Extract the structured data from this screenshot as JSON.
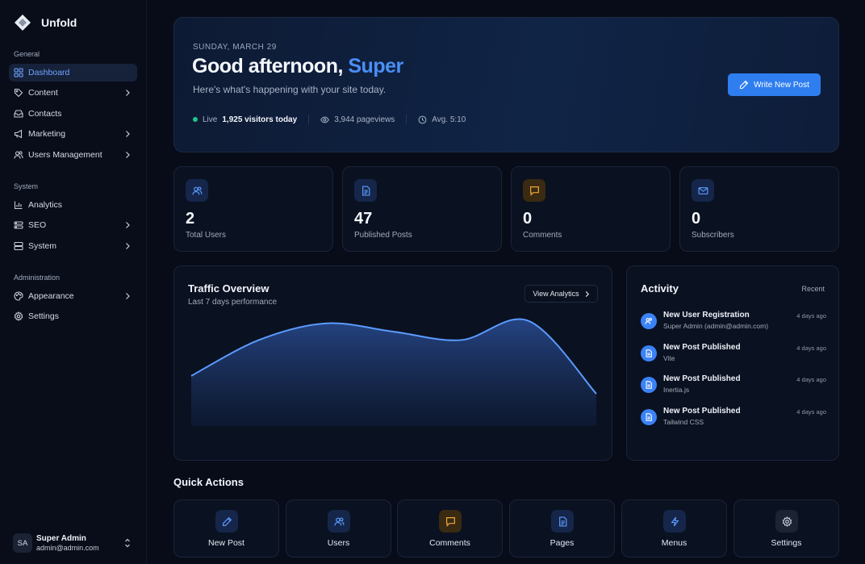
{
  "app": {
    "name": "Unfold"
  },
  "sidebar": {
    "sections": [
      {
        "title": "General",
        "items": [
          {
            "label": "Dashboard",
            "icon": "dashboard-icon",
            "active": true
          },
          {
            "label": "Content",
            "icon": "tag-icon",
            "has_children": true
          },
          {
            "label": "Contacts",
            "icon": "inbox-icon"
          },
          {
            "label": "Marketing",
            "icon": "megaphone-icon",
            "has_children": true
          },
          {
            "label": "Users Management",
            "icon": "users-icon",
            "has_children": true
          }
        ]
      },
      {
        "title": "System",
        "items": [
          {
            "label": "Analytics",
            "icon": "bar-chart-icon"
          },
          {
            "label": "SEO",
            "icon": "seo-icon",
            "has_children": true
          },
          {
            "label": "System",
            "icon": "server-icon",
            "has_children": true
          }
        ]
      },
      {
        "title": "Administration",
        "items": [
          {
            "label": "Appearance",
            "icon": "palette-icon",
            "has_children": true
          },
          {
            "label": "Settings",
            "icon": "gear-icon"
          }
        ]
      }
    ],
    "user": {
      "initials": "SA",
      "name": "Super Admin",
      "email": "admin@admin.com"
    }
  },
  "hero": {
    "date": "SUNDAY, MARCH 29",
    "greeting": "Good afternoon,",
    "name": "Super",
    "subtitle": "Here's what's happening with your site today.",
    "write_button": "Write New Post",
    "live_label": "Live",
    "visitors": "1,925 visitors today",
    "pageviews": "3,944 pageviews",
    "avg": "Avg. 5:10"
  },
  "metrics": [
    {
      "value": "2",
      "label": "Total Users",
      "icon": "users-icon"
    },
    {
      "value": "47",
      "label": "Published Posts",
      "icon": "document-icon"
    },
    {
      "value": "0",
      "label": "Comments",
      "icon": "comment-icon"
    },
    {
      "value": "0",
      "label": "Subscribers",
      "icon": "mail-icon"
    }
  ],
  "traffic": {
    "title": "Traffic Overview",
    "subtitle": "Last 7 days performance",
    "view_button": "View Analytics"
  },
  "chart_data": {
    "type": "area",
    "title": "Traffic Overview",
    "values": [
      42,
      72,
      86,
      79,
      72,
      88,
      27
    ],
    "ylim": [
      0,
      100
    ],
    "grid": false,
    "color": "#4b8ef5"
  },
  "activity": {
    "title": "Activity",
    "recent_label": "Recent",
    "items": [
      {
        "title": "New User Registration",
        "sub": "Super Admin (admin@admin.com)",
        "time": "4 days ago",
        "icon": "user-icon"
      },
      {
        "title": "New Post Published",
        "sub": "Vite",
        "time": "4 days ago",
        "icon": "document-icon"
      },
      {
        "title": "New Post Published",
        "sub": "Inertia.js",
        "time": "4 days ago",
        "icon": "document-icon"
      },
      {
        "title": "New Post Published",
        "sub": "Tailwind CSS",
        "time": "4 days ago",
        "icon": "document-icon"
      }
    ]
  },
  "quick_actions": {
    "title": "Quick Actions",
    "items": [
      {
        "label": "New Post",
        "icon": "pencil-icon"
      },
      {
        "label": "Users",
        "icon": "users-icon"
      },
      {
        "label": "Comments",
        "icon": "comment-icon"
      },
      {
        "label": "Pages",
        "icon": "document-icon"
      },
      {
        "label": "Menus",
        "icon": "bolt-icon"
      },
      {
        "label": "Settings",
        "icon": "gear-icon"
      }
    ]
  },
  "colors": {
    "accent": "#3b82f6",
    "accent_text": "#4b8ef5",
    "live": "#22c58b",
    "amber": "#f0a63a",
    "background": "#070c18"
  }
}
